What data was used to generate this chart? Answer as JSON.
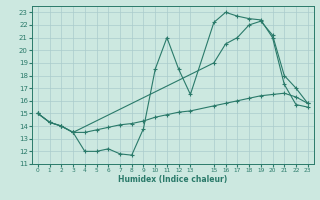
{
  "xlabel": "Humidex (Indice chaleur)",
  "bg_color": "#cce8e0",
  "grid_color": "#aacccc",
  "line_color": "#2a7a6a",
  "xlim": [
    -0.5,
    23.5
  ],
  "ylim": [
    11,
    23.5
  ],
  "xticks": [
    0,
    1,
    2,
    3,
    4,
    5,
    6,
    7,
    8,
    9,
    10,
    11,
    12,
    13,
    15,
    16,
    17,
    18,
    19,
    20,
    21,
    22,
    23
  ],
  "yticks": [
    11,
    12,
    13,
    14,
    15,
    16,
    17,
    18,
    19,
    20,
    21,
    22,
    23
  ],
  "line1_x": [
    0,
    1,
    2,
    3,
    4,
    5,
    6,
    7,
    8,
    9,
    10,
    11,
    12,
    13,
    15,
    16,
    17,
    18,
    19,
    20,
    21,
    22,
    23
  ],
  "line1_y": [
    15.0,
    14.3,
    14.0,
    13.5,
    12.0,
    12.0,
    12.2,
    11.8,
    11.7,
    13.8,
    18.5,
    21.0,
    18.5,
    16.5,
    22.2,
    23.0,
    22.7,
    22.5,
    22.4,
    21.0,
    17.3,
    15.7,
    15.5
  ],
  "line2_x": [
    0,
    1,
    2,
    3,
    15,
    16,
    17,
    18,
    19,
    20,
    21,
    22,
    23
  ],
  "line2_y": [
    15.0,
    14.3,
    14.0,
    13.5,
    19.0,
    20.5,
    21.0,
    22.0,
    22.3,
    21.2,
    18.0,
    17.0,
    15.8
  ],
  "line3_x": [
    0,
    1,
    2,
    3,
    4,
    5,
    6,
    7,
    8,
    9,
    10,
    11,
    12,
    13,
    15,
    16,
    17,
    18,
    19,
    20,
    21,
    22,
    23
  ],
  "line3_y": [
    15.0,
    14.3,
    14.0,
    13.5,
    13.5,
    13.7,
    13.9,
    14.1,
    14.2,
    14.4,
    14.7,
    14.9,
    15.1,
    15.2,
    15.6,
    15.8,
    16.0,
    16.2,
    16.4,
    16.5,
    16.6,
    16.3,
    15.8
  ]
}
